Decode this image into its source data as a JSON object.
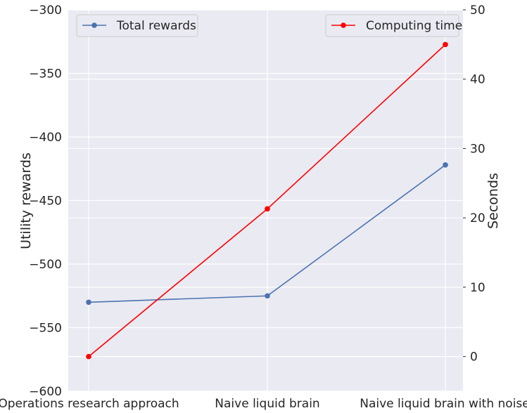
{
  "chart_data": {
    "type": "line",
    "categories": [
      "Operations research approach",
      "Naive liquid brain",
      "Naive liquid brain with noise"
    ],
    "left_axis": {
      "label": "Utility rewards",
      "ylim": [
        -600,
        -300
      ],
      "ticks": [
        -300,
        -350,
        -400,
        -450,
        -500,
        -550,
        -600
      ],
      "tick_labels": [
        "−300",
        "−350",
        "−400",
        "−450",
        "−500",
        "−550",
        "−600"
      ]
    },
    "right_axis": {
      "label": "Seconds",
      "ylim": [
        -5,
        50
      ],
      "ticks": [
        0,
        10,
        20,
        30,
        40,
        50
      ],
      "tick_labels": [
        "0",
        "10",
        "20",
        "30",
        "40",
        "50"
      ]
    },
    "series": [
      {
        "name": "Total rewards",
        "axis": "left",
        "values": [
          -530,
          -525,
          -422
        ],
        "color": "#4c72b0",
        "legend": "top-left"
      },
      {
        "name": "Computing time",
        "axis": "right",
        "values": [
          0,
          21.3,
          45
        ],
        "color": "#ff0000",
        "legend": "top-right"
      }
    ],
    "grid": true,
    "background": "#eaeaf2"
  }
}
